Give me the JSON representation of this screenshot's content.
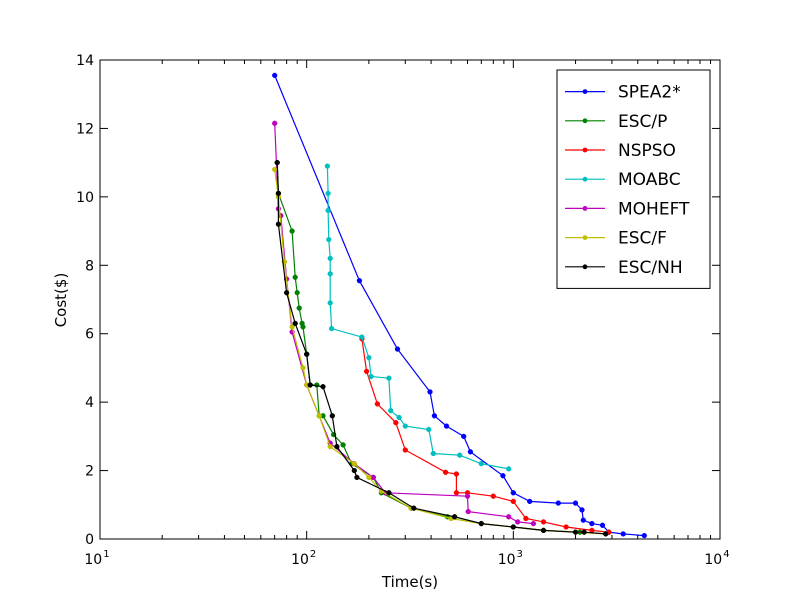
{
  "chart_data": {
    "type": "line",
    "title": "",
    "xlabel": "Time(s)",
    "ylabel": "Cost($)",
    "xscale": "log",
    "xlim": [
      10,
      10000
    ],
    "ylim": [
      0,
      14
    ],
    "x_ticks": [
      {
        "value": 10,
        "base": "10",
        "exp": "1"
      },
      {
        "value": 100,
        "base": "10",
        "exp": "2"
      },
      {
        "value": 1000,
        "base": "10",
        "exp": "3"
      },
      {
        "value": 10000,
        "base": "10",
        "exp": "4"
      }
    ],
    "y_ticks": [
      0,
      2,
      4,
      6,
      8,
      10,
      12,
      14
    ],
    "grid": false,
    "legend_position": "top-right",
    "series": [
      {
        "name": "SPEA2*",
        "color": "#0000ff",
        "points": [
          [
            70,
            13.55
          ],
          [
            180,
            7.55
          ],
          [
            275,
            5.55
          ],
          [
            395,
            4.3
          ],
          [
            415,
            3.6
          ],
          [
            475,
            3.3
          ],
          [
            575,
            3.0
          ],
          [
            620,
            2.55
          ],
          [
            890,
            1.85
          ],
          [
            1000,
            1.35
          ],
          [
            1200,
            1.1
          ],
          [
            1650,
            1.05
          ],
          [
            2000,
            1.05
          ],
          [
            2150,
            0.85
          ],
          [
            2180,
            0.55
          ],
          [
            2400,
            0.45
          ],
          [
            2700,
            0.4
          ],
          [
            2900,
            0.2
          ],
          [
            3400,
            0.15
          ],
          [
            4300,
            0.1
          ]
        ]
      },
      {
        "name": "ESC/P",
        "color": "#008000",
        "points": [
          [
            72,
            11.0
          ],
          [
            73,
            10.1
          ],
          [
            85,
            9.0
          ],
          [
            88,
            7.65
          ],
          [
            90,
            7.2
          ],
          [
            92,
            6.75
          ],
          [
            95,
            6.3
          ],
          [
            96,
            6.2
          ],
          [
            100,
            5.4
          ],
          [
            104,
            4.5
          ],
          [
            112,
            4.5
          ],
          [
            115,
            3.6
          ],
          [
            120,
            3.6
          ],
          [
            135,
            3.05
          ],
          [
            150,
            2.75
          ],
          [
            165,
            2.2
          ],
          [
            210,
            1.8
          ],
          [
            230,
            1.35
          ],
          [
            320,
            0.9
          ],
          [
            480,
            0.65
          ],
          [
            520,
            0.65
          ],
          [
            700,
            0.45
          ],
          [
            1000,
            0.35
          ],
          [
            1400,
            0.25
          ],
          [
            2100,
            0.2
          ]
        ]
      },
      {
        "name": "NSPSO",
        "color": "#ff0000",
        "points": [
          [
            185,
            5.85
          ],
          [
            195,
            4.9
          ],
          [
            220,
            3.95
          ],
          [
            270,
            3.4
          ],
          [
            300,
            2.6
          ],
          [
            470,
            1.95
          ],
          [
            530,
            1.9
          ],
          [
            530,
            1.35
          ],
          [
            600,
            1.35
          ],
          [
            800,
            1.25
          ],
          [
            1000,
            1.1
          ],
          [
            1150,
            0.6
          ],
          [
            1400,
            0.5
          ],
          [
            1800,
            0.35
          ],
          [
            2400,
            0.25
          ],
          [
            2900,
            0.2
          ]
        ]
      },
      {
        "name": "MOABC",
        "color": "#00bfbf",
        "points": [
          [
            126,
            10.9
          ],
          [
            127,
            10.1
          ],
          [
            127,
            9.6
          ],
          [
            128,
            8.75
          ],
          [
            130,
            8.2
          ],
          [
            130,
            7.75
          ],
          [
            130,
            6.9
          ],
          [
            132,
            6.15
          ],
          [
            185,
            5.9
          ],
          [
            200,
            5.3
          ],
          [
            205,
            4.75
          ],
          [
            250,
            4.7
          ],
          [
            255,
            3.75
          ],
          [
            280,
            3.55
          ],
          [
            300,
            3.3
          ],
          [
            390,
            3.2
          ],
          [
            410,
            2.5
          ],
          [
            550,
            2.45
          ],
          [
            700,
            2.2
          ],
          [
            950,
            2.05
          ]
        ]
      },
      {
        "name": "MOHEFT",
        "color": "#bf00bf",
        "points": [
          [
            70,
            12.15
          ],
          [
            73,
            9.65
          ],
          [
            75,
            9.45
          ],
          [
            80,
            7.6
          ],
          [
            85,
            6.05
          ],
          [
            100,
            4.5
          ],
          [
            130,
            2.8
          ],
          [
            170,
            2.2
          ],
          [
            210,
            1.8
          ],
          [
            240,
            1.35
          ],
          [
            600,
            1.25
          ],
          [
            605,
            0.8
          ],
          [
            950,
            0.65
          ],
          [
            1050,
            0.5
          ],
          [
            1250,
            0.45
          ]
        ]
      },
      {
        "name": "ESC/F",
        "color": "#bfbf00",
        "points": [
          [
            70,
            10.8
          ],
          [
            73,
            10.0
          ],
          [
            78,
            8.1
          ],
          [
            85,
            6.2
          ],
          [
            96,
            5.0
          ],
          [
            100,
            4.5
          ],
          [
            115,
            3.6
          ],
          [
            130,
            2.7
          ],
          [
            170,
            2.2
          ],
          [
            200,
            1.8
          ],
          [
            230,
            1.4
          ],
          [
            320,
            0.9
          ],
          [
            500,
            0.6
          ],
          [
            700,
            0.45
          ],
          [
            1000,
            0.35
          ],
          [
            1400,
            0.25
          ],
          [
            2800,
            0.15
          ]
        ]
      },
      {
        "name": "ESC/NH",
        "color": "#000000",
        "points": [
          [
            72,
            11.0
          ],
          [
            73,
            10.1
          ],
          [
            73,
            9.2
          ],
          [
            80,
            7.2
          ],
          [
            88,
            6.3
          ],
          [
            100,
            5.4
          ],
          [
            104,
            4.5
          ],
          [
            120,
            4.45
          ],
          [
            133,
            3.6
          ],
          [
            140,
            2.7
          ],
          [
            170,
            2.0
          ],
          [
            175,
            1.8
          ],
          [
            250,
            1.35
          ],
          [
            330,
            0.9
          ],
          [
            520,
            0.65
          ],
          [
            700,
            0.45
          ],
          [
            1000,
            0.35
          ],
          [
            1400,
            0.25
          ],
          [
            2000,
            0.2
          ],
          [
            2200,
            0.2
          ],
          [
            2800,
            0.15
          ]
        ]
      }
    ]
  }
}
